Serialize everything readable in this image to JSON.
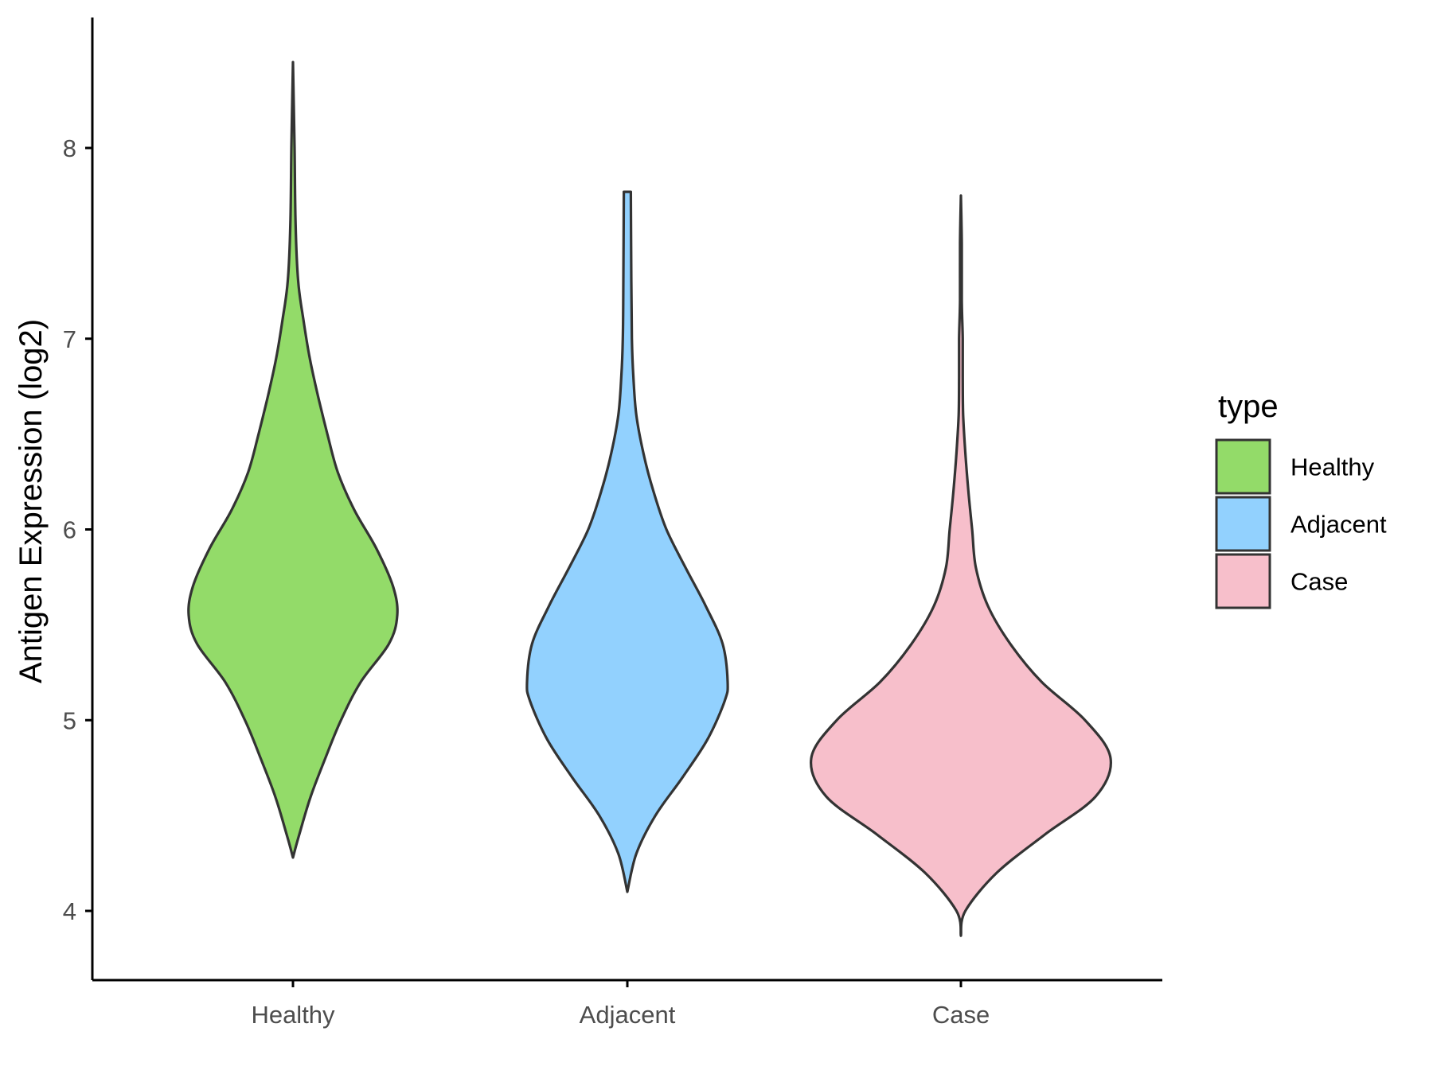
{
  "chart_data": {
    "type": "violin",
    "title": "",
    "xlabel": "",
    "ylabel": "Antigen Expression (log2)",
    "ylim": [
      3.65,
      8.7
    ],
    "yticks": [
      4,
      5,
      6,
      7,
      8
    ],
    "grid": false,
    "legend_position": "right",
    "legend_title": "type",
    "categories": [
      "Healthy",
      "Adjacent",
      "Case"
    ],
    "series": [
      {
        "name": "Healthy",
        "color": "#93db69",
        "min": 4.28,
        "max": 8.45,
        "density": [
          [
            4.28,
            0.0
          ],
          [
            4.4,
            0.06
          ],
          [
            4.6,
            0.17
          ],
          [
            4.8,
            0.31
          ],
          [
            5.0,
            0.46
          ],
          [
            5.2,
            0.65
          ],
          [
            5.4,
            0.92
          ],
          [
            5.55,
            1.0
          ],
          [
            5.7,
            0.96
          ],
          [
            5.9,
            0.8
          ],
          [
            6.1,
            0.59
          ],
          [
            6.3,
            0.43
          ],
          [
            6.5,
            0.33
          ],
          [
            6.7,
            0.24
          ],
          [
            6.9,
            0.16
          ],
          [
            7.1,
            0.1
          ],
          [
            7.3,
            0.05
          ],
          [
            7.6,
            0.025
          ],
          [
            8.0,
            0.015
          ],
          [
            8.45,
            0.0
          ]
        ]
      },
      {
        "name": "Adjacent",
        "color": "#92d1fe",
        "min": 4.1,
        "max": 7.77,
        "density": [
          [
            4.1,
            0.0
          ],
          [
            4.3,
            0.09
          ],
          [
            4.5,
            0.28
          ],
          [
            4.7,
            0.55
          ],
          [
            4.9,
            0.8
          ],
          [
            5.1,
            0.97
          ],
          [
            5.2,
            1.0
          ],
          [
            5.4,
            0.95
          ],
          [
            5.6,
            0.78
          ],
          [
            5.8,
            0.58
          ],
          [
            6.0,
            0.39
          ],
          [
            6.2,
            0.26
          ],
          [
            6.4,
            0.16
          ],
          [
            6.6,
            0.09
          ],
          [
            6.8,
            0.06
          ],
          [
            7.0,
            0.045
          ],
          [
            7.3,
            0.04
          ],
          [
            7.77,
            0.035
          ]
        ]
      },
      {
        "name": "Case",
        "color": "#f7bfcb",
        "min": 3.87,
        "max": 7.75,
        "density": [
          [
            3.87,
            0.0
          ],
          [
            4.0,
            0.03
          ],
          [
            4.2,
            0.24
          ],
          [
            4.4,
            0.56
          ],
          [
            4.6,
            0.9
          ],
          [
            4.8,
            1.0
          ],
          [
            5.0,
            0.83
          ],
          [
            5.2,
            0.54
          ],
          [
            5.4,
            0.33
          ],
          [
            5.6,
            0.18
          ],
          [
            5.8,
            0.1
          ],
          [
            6.0,
            0.075
          ],
          [
            6.2,
            0.05
          ],
          [
            6.4,
            0.03
          ],
          [
            6.6,
            0.015
          ],
          [
            6.8,
            0.012
          ],
          [
            7.0,
            0.012
          ],
          [
            7.2,
            0.006
          ],
          [
            7.5,
            0.006
          ],
          [
            7.75,
            0.0
          ]
        ]
      }
    ]
  }
}
